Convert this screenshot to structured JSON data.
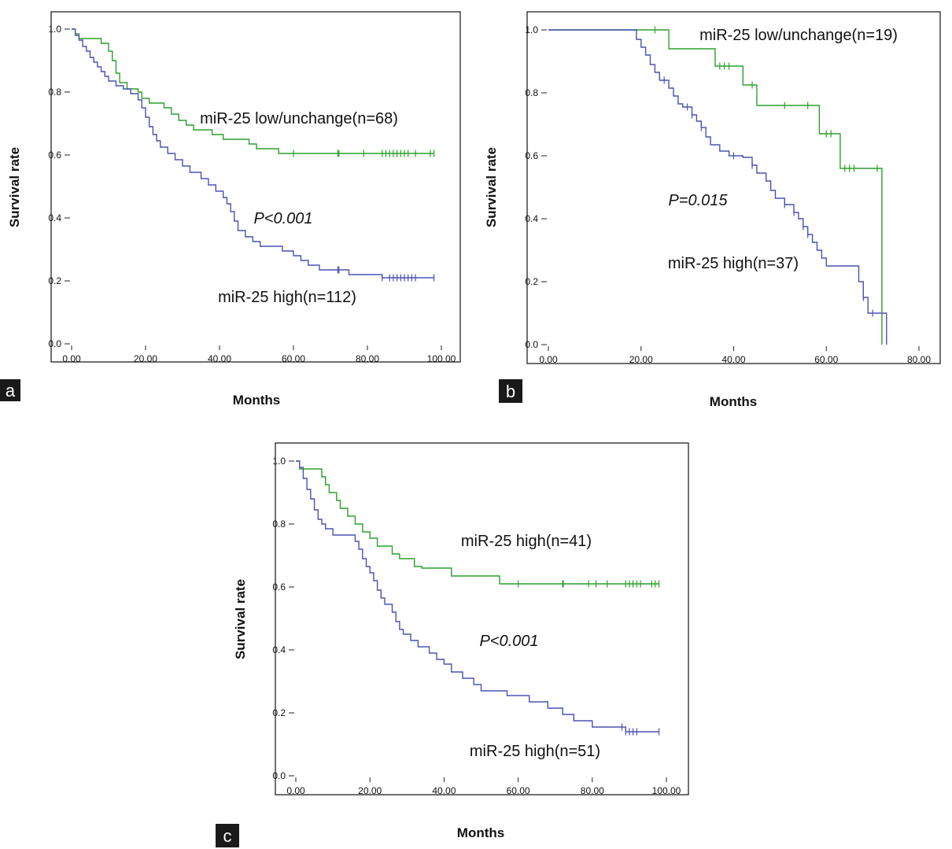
{
  "panels": [
    {
      "label": "a",
      "chart_data": {
        "type": "line",
        "xlabel": "Months",
        "ylabel": "Survival rate",
        "xlim": [
          0,
          100
        ],
        "ylim": [
          0,
          1
        ],
        "x_ticks": [
          "0.00",
          "20.00",
          "40.00",
          "60.00",
          "80.00",
          "100.00"
        ],
        "y_ticks": [
          "0.0",
          "0.2",
          "0.4",
          "0.6",
          "0.8",
          "1.0"
        ],
        "grid": false,
        "annotations": [
          "miR-25 low/unchange(n=68)",
          "P<0.001",
          "miR-25 high(n=112)"
        ],
        "series": [
          {
            "label": "miR-25 low/unchange(n=68)",
            "color": "#2ca02c",
            "points": [
              [
                0,
                1.0
              ],
              [
                1,
                0.985
              ],
              [
                2,
                0.97
              ],
              [
                8,
                0.955
              ],
              [
                10,
                0.93
              ],
              [
                11,
                0.9
              ],
              [
                12,
                0.86
              ],
              [
                13,
                0.83
              ],
              [
                15,
                0.81
              ],
              [
                18,
                0.8
              ],
              [
                19,
                0.78
              ],
              [
                21,
                0.765
              ],
              [
                25,
                0.75
              ],
              [
                27,
                0.73
              ],
              [
                29,
                0.71
              ],
              [
                31,
                0.695
              ],
              [
                33,
                0.68
              ],
              [
                38,
                0.665
              ],
              [
                41,
                0.65
              ],
              [
                48,
                0.635
              ],
              [
                50,
                0.62
              ],
              [
                56,
                0.605
              ],
              [
                98,
                0.605
              ]
            ],
            "censored": [
              60,
              72,
              72.3,
              79,
              84,
              85,
              86,
              87,
              88,
              89,
              90,
              91,
              93,
              97,
              98
            ]
          },
          {
            "label": "miR-25 high(n=112)",
            "color": "#4a52b3",
            "points": [
              [
                0,
                1.0
              ],
              [
                1,
                0.98
              ],
              [
                2,
                0.965
              ],
              [
                3,
                0.945
              ],
              [
                4,
                0.93
              ],
              [
                5,
                0.91
              ],
              [
                6,
                0.895
              ],
              [
                7,
                0.88
              ],
              [
                8,
                0.865
              ],
              [
                9,
                0.85
              ],
              [
                10,
                0.835
              ],
              [
                12,
                0.82
              ],
              [
                14,
                0.81
              ],
              [
                16,
                0.795
              ],
              [
                18,
                0.775
              ],
              [
                19,
                0.75
              ],
              [
                20,
                0.72
              ],
              [
                21,
                0.69
              ],
              [
                22,
                0.665
              ],
              [
                23,
                0.645
              ],
              [
                24,
                0.625
              ],
              [
                26,
                0.605
              ],
              [
                28,
                0.585
              ],
              [
                30,
                0.565
              ],
              [
                32,
                0.545
              ],
              [
                35,
                0.525
              ],
              [
                37,
                0.505
              ],
              [
                39,
                0.485
              ],
              [
                41,
                0.465
              ],
              [
                42,
                0.445
              ],
              [
                43,
                0.42
              ],
              [
                44,
                0.39
              ],
              [
                45,
                0.36
              ],
              [
                47,
                0.34
              ],
              [
                49,
                0.325
              ],
              [
                51,
                0.31
              ],
              [
                57,
                0.295
              ],
              [
                60,
                0.28
              ],
              [
                62,
                0.265
              ],
              [
                64,
                0.25
              ],
              [
                67,
                0.235
              ],
              [
                75,
                0.22
              ],
              [
                84,
                0.21
              ],
              [
                98,
                0.21
              ]
            ],
            "censored": [
              72,
              72.3,
              84,
              86,
              87,
              88,
              89,
              90,
              91,
              92,
              93,
              98
            ]
          }
        ]
      }
    },
    {
      "label": "b",
      "chart_data": {
        "type": "line",
        "xlabel": "Months",
        "ylabel": "Survival rate",
        "xlim": [
          0,
          80
        ],
        "ylim": [
          0,
          1
        ],
        "x_ticks": [
          "0.00",
          "20.00",
          "40.00",
          "60.00",
          "80.00"
        ],
        "y_ticks": [
          "0.0",
          "0.2",
          "0.4",
          "0.6",
          "0.8",
          "1.0"
        ],
        "grid": false,
        "annotations": [
          "miR-25 low/unchange(n=19)",
          "P=0.015",
          "miR-25 high(n=37)"
        ],
        "series": [
          {
            "label": "miR-25 low/unchange(n=19)",
            "color": "#2ca02c",
            "points": [
              [
                0,
                1.0
              ],
              [
                26,
                1.0
              ],
              [
                26,
                0.94
              ],
              [
                36,
                0.94
              ],
              [
                36,
                0.885
              ],
              [
                42,
                0.885
              ],
              [
                42,
                0.825
              ],
              [
                45,
                0.825
              ],
              [
                45,
                0.76
              ],
              [
                58.5,
                0.76
              ],
              [
                58.5,
                0.67
              ],
              [
                63,
                0.67
              ],
              [
                63,
                0.56
              ],
              [
                72,
                0.56
              ],
              [
                72,
                0.0
              ]
            ],
            "censored": [
              23,
              37,
              38,
              39,
              44,
              51,
              56,
              60,
              61,
              64,
              65,
              66,
              71
            ]
          },
          {
            "label": "miR-25 high(n=37)",
            "color": "#4a52b3",
            "points": [
              [
                0,
                1.0
              ],
              [
                18,
                1.0
              ],
              [
                19,
                0.97
              ],
              [
                20,
                0.945
              ],
              [
                21,
                0.92
              ],
              [
                22,
                0.89
              ],
              [
                23,
                0.865
              ],
              [
                24,
                0.84
              ],
              [
                26,
                0.815
              ],
              [
                27,
                0.79
              ],
              [
                28,
                0.765
              ],
              [
                29,
                0.755
              ],
              [
                31,
                0.73
              ],
              [
                32,
                0.71
              ],
              [
                33,
                0.69
              ],
              [
                34,
                0.66
              ],
              [
                35,
                0.635
              ],
              [
                37,
                0.615
              ],
              [
                39,
                0.6
              ],
              [
                42,
                0.595
              ],
              [
                44,
                0.57
              ],
              [
                45,
                0.545
              ],
              [
                47,
                0.52
              ],
              [
                48,
                0.49
              ],
              [
                49,
                0.465
              ],
              [
                51,
                0.445
              ],
              [
                53,
                0.42
              ],
              [
                54,
                0.4
              ],
              [
                55,
                0.375
              ],
              [
                56,
                0.35
              ],
              [
                57,
                0.325
              ],
              [
                58,
                0.3
              ],
              [
                59,
                0.275
              ],
              [
                60,
                0.25
              ],
              [
                67,
                0.2
              ],
              [
                68,
                0.15
              ],
              [
                69,
                0.1
              ],
              [
                71,
                0.1
              ],
              [
                73,
                0.0
              ]
            ],
            "censored": [
              25,
              30,
              31,
              33,
              40,
              44,
              51,
              53,
              55,
              56,
              68,
              70
            ]
          }
        ]
      }
    },
    {
      "label": "c",
      "chart_data": {
        "type": "line",
        "xlabel": "Months",
        "ylabel": "Survival rate",
        "xlim": [
          0,
          100
        ],
        "ylim": [
          0,
          1
        ],
        "x_ticks": [
          "0.00",
          "20.00",
          "40.00",
          "60.00",
          "80.00",
          "100.00"
        ],
        "y_ticks": [
          "0.0",
          "0.2",
          "0.4",
          "0.6",
          "0.8",
          "1.0"
        ],
        "grid": false,
        "annotations": [
          "miR-25 high(n=41)",
          "P<0.001",
          "miR-25 high(n=51)"
        ],
        "series": [
          {
            "label": "miR-25 high(n=41)",
            "color": "#2ca02c",
            "points": [
              [
                0,
                1.0
              ],
              [
                1,
                0.975
              ],
              [
                7,
                0.95
              ],
              [
                8,
                0.925
              ],
              [
                9,
                0.9
              ],
              [
                11,
                0.875
              ],
              [
                12,
                0.85
              ],
              [
                14,
                0.825
              ],
              [
                16,
                0.8
              ],
              [
                18,
                0.775
              ],
              [
                20,
                0.755
              ],
              [
                22,
                0.73
              ],
              [
                26,
                0.705
              ],
              [
                28,
                0.69
              ],
              [
                32,
                0.665
              ],
              [
                34,
                0.66
              ],
              [
                42,
                0.635
              ],
              [
                55,
                0.61
              ],
              [
                98,
                0.61
              ]
            ],
            "censored": [
              60,
              72,
              72.2,
              79,
              81,
              84,
              89,
              90,
              91,
              92,
              93,
              96,
              97,
              98
            ]
          },
          {
            "label": "miR-25 high(n=51)",
            "color": "#4a52b3",
            "points": [
              [
                0,
                1.0
              ],
              [
                1,
                0.98
              ],
              [
                2,
                0.945
              ],
              [
                3,
                0.91
              ],
              [
                4,
                0.88
              ],
              [
                5,
                0.845
              ],
              [
                6,
                0.815
              ],
              [
                7,
                0.8
              ],
              [
                8,
                0.785
              ],
              [
                10,
                0.765
              ],
              [
                16,
                0.745
              ],
              [
                17,
                0.72
              ],
              [
                18,
                0.69
              ],
              [
                19,
                0.665
              ],
              [
                20,
                0.645
              ],
              [
                21,
                0.62
              ],
              [
                22,
                0.59
              ],
              [
                23,
                0.565
              ],
              [
                24,
                0.545
              ],
              [
                26,
                0.52
              ],
              [
                27,
                0.49
              ],
              [
                28,
                0.465
              ],
              [
                29,
                0.45
              ],
              [
                31,
                0.43
              ],
              [
                33,
                0.41
              ],
              [
                36,
                0.39
              ],
              [
                38,
                0.37
              ],
              [
                40,
                0.355
              ],
              [
                42,
                0.33
              ],
              [
                45,
                0.31
              ],
              [
                48,
                0.29
              ],
              [
                50,
                0.27
              ],
              [
                57,
                0.255
              ],
              [
                63,
                0.235
              ],
              [
                68,
                0.215
              ],
              [
                72,
                0.195
              ],
              [
                75,
                0.175
              ],
              [
                80,
                0.155
              ],
              [
                89,
                0.14
              ],
              [
                98,
                0.14
              ]
            ],
            "censored": [
              88,
              89,
              90,
              91,
              92,
              98
            ]
          }
        ]
      }
    }
  ]
}
